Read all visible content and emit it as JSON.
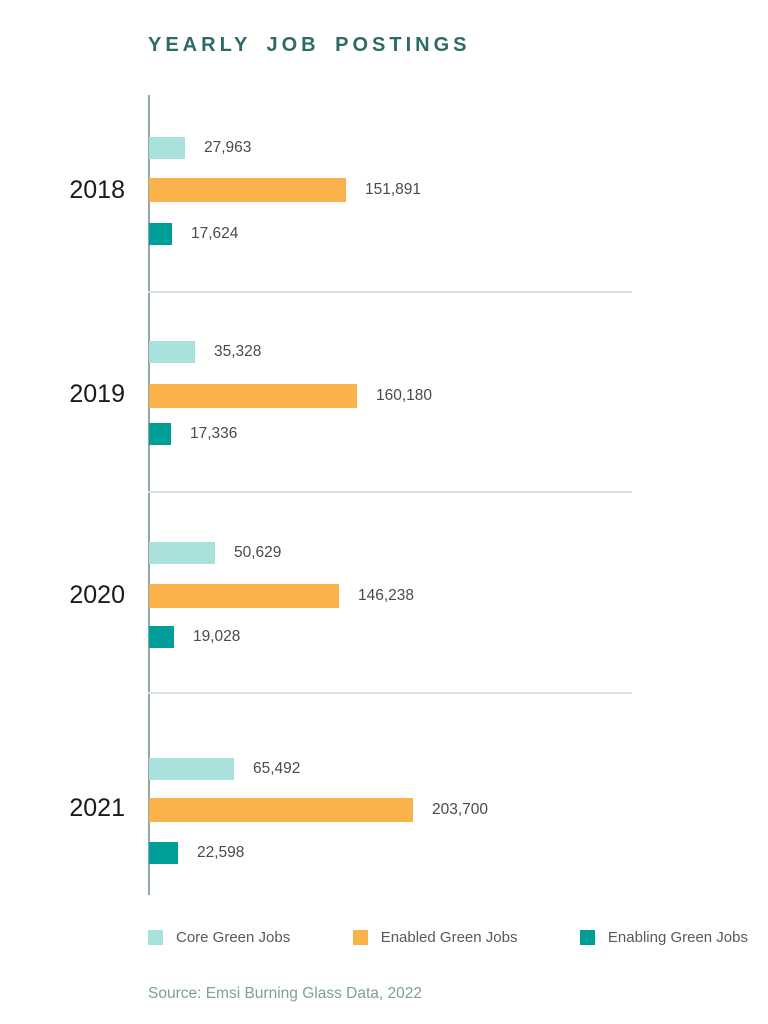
{
  "chart_data": {
    "type": "bar",
    "orientation": "horizontal",
    "title": "YEARLY JOB POSTINGS",
    "categories": [
      "2018",
      "2019",
      "2020",
      "2021"
    ],
    "series": [
      {
        "name": "Core Green Jobs",
        "color": "#A8E0DB",
        "values": [
          27963,
          35328,
          50629,
          65492
        ],
        "labels": [
          "27,963",
          "35,328",
          "50,629",
          "65,492"
        ]
      },
      {
        "name": "Enabled Green Jobs",
        "color": "#FBB24B",
        "values": [
          151891,
          160180,
          146238,
          203700
        ],
        "labels": [
          "151,891",
          "160,180",
          "146,238",
          "203,700"
        ]
      },
      {
        "name": "Enabling Green Jobs",
        "color": "#009E98",
        "values": [
          17624,
          17336,
          19028,
          22598
        ],
        "labels": [
          "17,624",
          "17,336",
          "19,028",
          "22,598"
        ]
      }
    ],
    "xlim": [
      0,
      203700
    ],
    "grid": false,
    "legend_position": "bottom",
    "xlabel": "",
    "ylabel": ""
  },
  "source": "Source: Emsi Burning Glass Data, 2022",
  "colors": {
    "title": "#2E6A66",
    "year_label": "#1A1A1A",
    "value_label": "#4A4A4A",
    "legend_label": "#58595B",
    "source": "#7D9F9B",
    "axis": "#8FA8A5",
    "separator": "#D9E2E0",
    "background": "#FFFFFF"
  }
}
